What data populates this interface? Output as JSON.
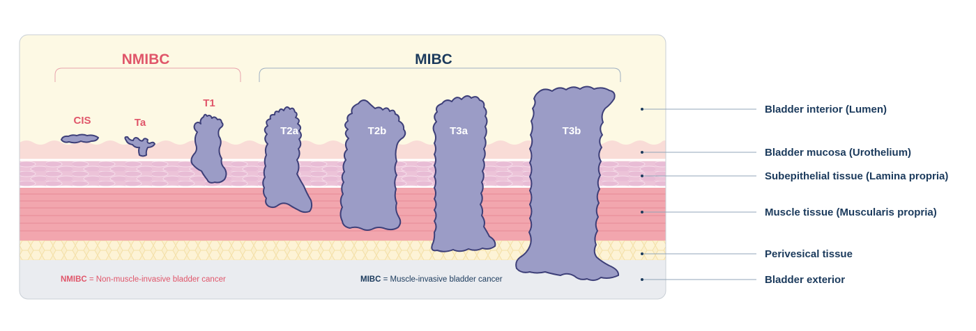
{
  "groups": {
    "nmibc": {
      "title": "NMIBC",
      "color": "#e0566a"
    },
    "mibc": {
      "title": "MIBC",
      "color": "#1b3a5c"
    }
  },
  "stages": {
    "cis": "CIS",
    "ta": "Ta",
    "t1": "T1",
    "t2a": "T2a",
    "t2b": "T2b",
    "t3a": "T3a",
    "t3b": "T3b"
  },
  "layers": {
    "lumen": "Bladder interior (Lumen)",
    "urothelium": "Bladder mucosa (Urothelium)",
    "lamina": "Subepithelial tissue (Lamina propria)",
    "muscle": "Muscle tissue (Muscularis propria)",
    "perivesical": "Perivesical tissue",
    "exterior": "Bladder exterior"
  },
  "legend": {
    "nmibc_abbr": "NMIBC",
    "nmibc_text": " = Non-muscle-invasive bladder cancer",
    "mibc_abbr": "MIBC",
    "mibc_text": " = Muscle-invasive bladder cancer"
  },
  "colors": {
    "lumen": "#fdf9e4",
    "urothelium": "#f9dcd7",
    "lamina": "#ecc3d8",
    "muscle": "#f2a6ae",
    "perivesical": "#fbefcc",
    "exterior": "#eaecf0",
    "tumor": "#9b9cc6",
    "tumor_stroke": "#3d3f78",
    "label": "#1b3a5c",
    "leader": "#90a4b8"
  }
}
